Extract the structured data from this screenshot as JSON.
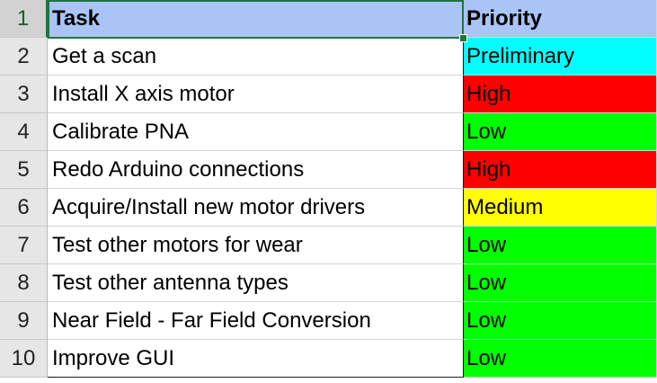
{
  "sheet": {
    "header": {
      "row_number": "1",
      "task": "Task",
      "priority": "Priority"
    },
    "rows": [
      {
        "row_number": "2",
        "task": "Get a scan",
        "priority": "Preliminary",
        "color": "#00ffff"
      },
      {
        "row_number": "3",
        "task": "Install X axis motor",
        "priority": "High",
        "color": "#ff0000"
      },
      {
        "row_number": "4",
        "task": "Calibrate PNA",
        "priority": "Low",
        "color": "#00ff00"
      },
      {
        "row_number": "5",
        "task": "Redo Arduino connections",
        "priority": "High",
        "color": "#ff0000"
      },
      {
        "row_number": "6",
        "task": "Acquire/Install new motor drivers",
        "priority": "Medium",
        "color": "#ffff00"
      },
      {
        "row_number": "7",
        "task": "Test other motors for wear",
        "priority": "Low",
        "color": "#00ff00"
      },
      {
        "row_number": "8",
        "task": "Test other antenna types",
        "priority": "Low",
        "color": "#00ff00"
      },
      {
        "row_number": "9",
        "task": "Near Field - Far Field Conversion",
        "priority": "Low",
        "color": "#00ff00"
      },
      {
        "row_number": "10",
        "task": "Improve GUI",
        "priority": "Low",
        "color": "#00ff00"
      }
    ],
    "colors": {
      "header_fill": "#a9c4f5",
      "selection": "#217346",
      "row_header": "#e6e6e6"
    }
  }
}
